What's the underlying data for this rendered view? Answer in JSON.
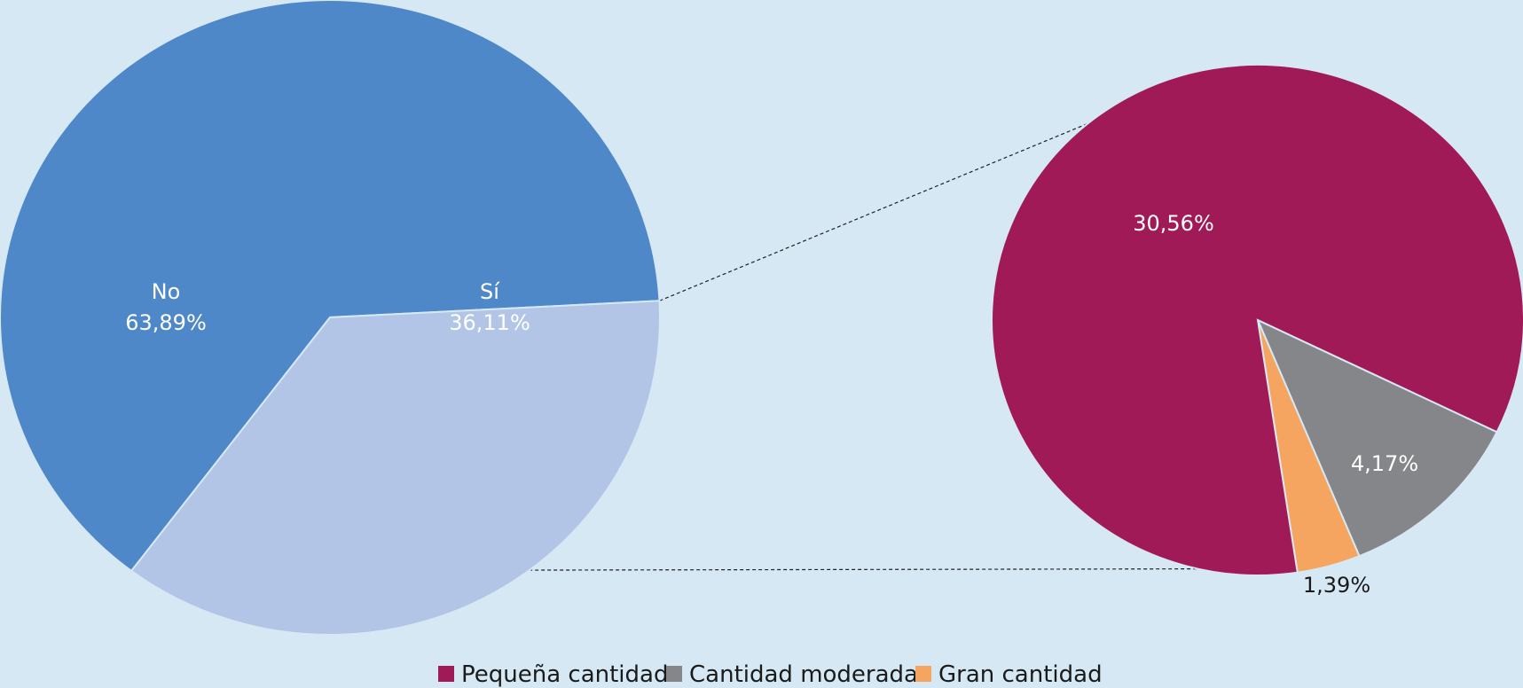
{
  "chart_data": [
    {
      "type": "pie",
      "title": "",
      "slices": [
        {
          "label": "No",
          "value": 63.89,
          "display": "63,89%",
          "color": "#4f88c8"
        },
        {
          "label": "Sí",
          "value": 36.11,
          "display": "36,11%",
          "color": "#b2c5e6"
        }
      ]
    },
    {
      "type": "pie",
      "title": "",
      "note": "breakdown of the Sí slice",
      "slices": [
        {
          "label": "Pequeña cantidad",
          "value": 30.56,
          "display": "30,56%",
          "color": "#a01a58"
        },
        {
          "label": "Cantidad moderada",
          "value": 4.17,
          "display": "4,17%",
          "color": "#85868a"
        },
        {
          "label": "Gran cantidad",
          "value": 1.39,
          "display": "1,39%",
          "color": "#f5a55f"
        }
      ],
      "legend": {
        "placement": "bottom",
        "entries": [
          "Pequeña cantidad",
          "Cantidad moderada",
          "Gran cantidad"
        ]
      }
    }
  ],
  "colors": {
    "background": "#d6e8f3",
    "connector": "#222222",
    "slice_border": "#d6e8f3"
  }
}
